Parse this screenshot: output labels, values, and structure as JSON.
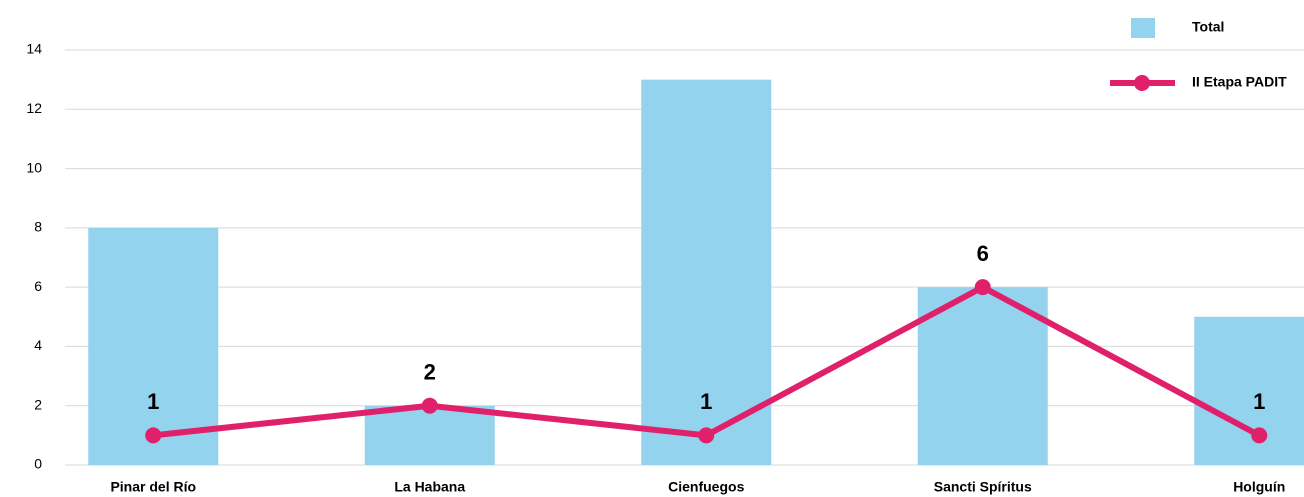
{
  "chart_data": {
    "type": "bar",
    "categories": [
      "Pinar del Río",
      "La Habana",
      "Cienfuegos",
      "Sancti Spíritus",
      "Holguín"
    ],
    "series": [
      {
        "name": "Total",
        "type": "bar",
        "color": "#93d3ee",
        "values": [
          8,
          2,
          13,
          6,
          5
        ]
      },
      {
        "name": "II Etapa PADIT",
        "type": "line",
        "color": "#e0206a",
        "values": [
          1,
          2,
          1,
          6,
          1
        ]
      }
    ],
    "ylim": [
      0,
      14
    ],
    "yticks": [
      0,
      2,
      4,
      6,
      8,
      10,
      12,
      14
    ],
    "grid": true,
    "legend": "top-right"
  }
}
